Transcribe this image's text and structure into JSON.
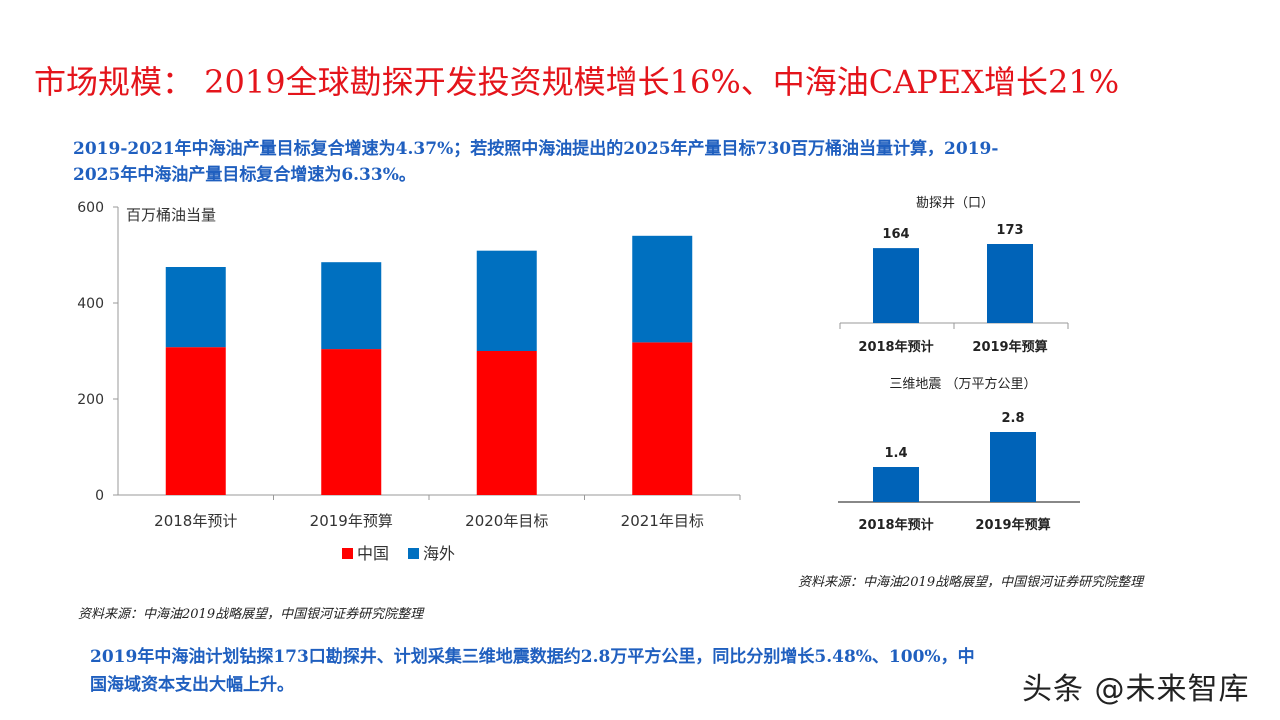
{
  "title": "市场规模： 2019全球勘探开发投资规模增长16%、中海油CAPEX增长21%",
  "intro_text": "2019-2021年中海油产量目标复合增速为4.37%；若按照中海油提出的2025年产量目标730百万桶油当量计算，2019-2025年中海油产量目标复合增速为6.33%。",
  "conclusion_text": "2019年中海油计划钻探173口勘探井、计划采集三维地震数据约2.8万平方公里，同比分别增长5.48%、100%，中国海域资本支出大幅上升。",
  "source_main": "资料来源：中海油2019战略展望，中国银河证券研究院整理",
  "source_right": "资料来源：中海油2019战略展望，中国银河证券研究院整理",
  "watermark": "头条 @未来智库",
  "colors": {
    "china": "#ff0000",
    "overseas": "#0070c0",
    "small_bar": "#0063b8",
    "title": "#e4141b",
    "text_blue": "#1f5fbf"
  },
  "chart_data": [
    {
      "type": "bar",
      "stacked": true,
      "title": "百万桶油当量",
      "categories": [
        "2018年预计",
        "2019年预算",
        "2020年目标",
        "2021年目标"
      ],
      "series": [
        {
          "name": "中国",
          "values": [
            308,
            304,
            300,
            318
          ]
        },
        {
          "name": "海外",
          "values": [
            167,
            181,
            209,
            222
          ]
        }
      ],
      "ylim": [
        0,
        600
      ],
      "yticks": [
        0,
        200,
        400,
        600
      ],
      "legend": "bottom",
      "grid": false
    },
    {
      "type": "bar",
      "title": "勘探井（口）",
      "categories": [
        "2018年预计",
        "2019年预算"
      ],
      "values": [
        164,
        173
      ],
      "data_labels": [
        "164",
        "173"
      ],
      "legend": "none"
    },
    {
      "type": "bar",
      "title": "三维地震 （万平方公里）",
      "categories": [
        "2018年预计",
        "2019年预算"
      ],
      "values": [
        1.4,
        2.8
      ],
      "data_labels": [
        "1.4",
        "2.8"
      ],
      "legend": "none"
    }
  ]
}
